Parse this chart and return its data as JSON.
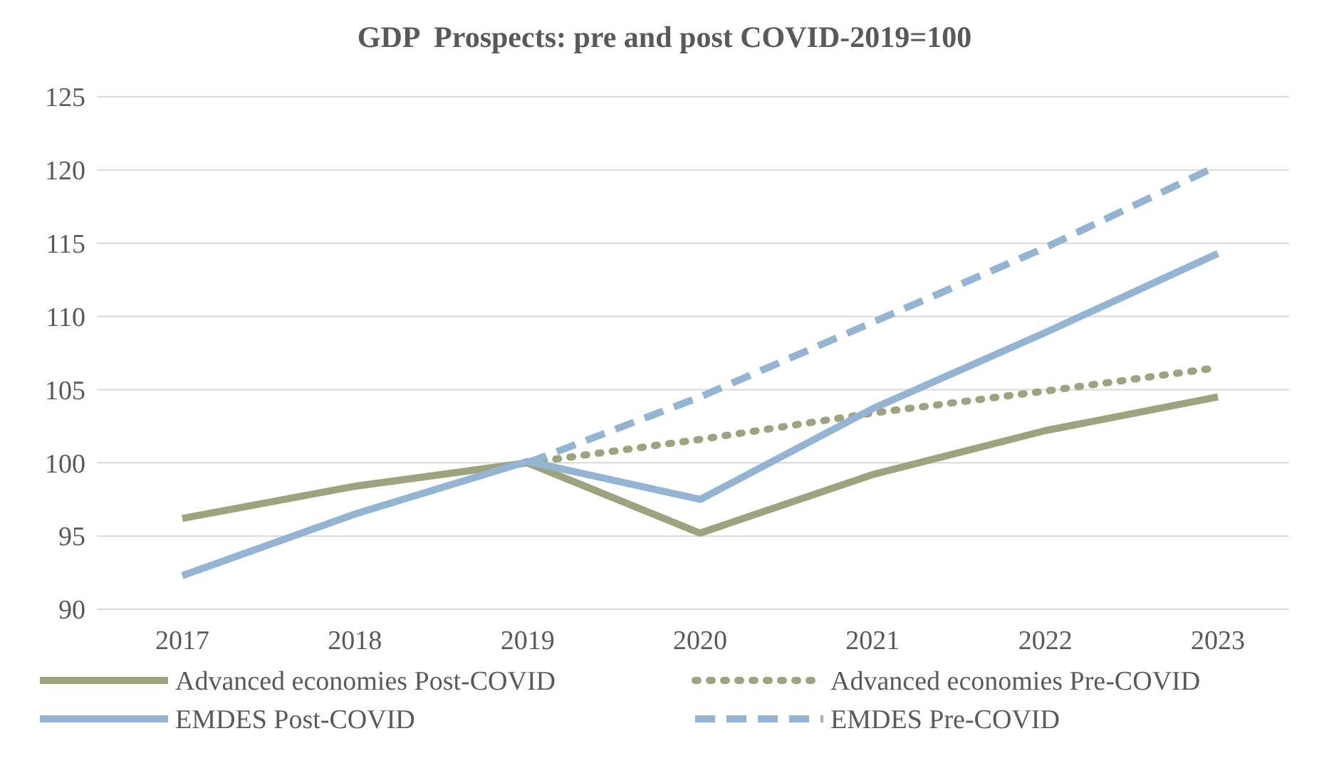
{
  "chart_data": {
    "type": "line",
    "title": "GDP  Prospects: pre and post COVID-2019=100",
    "categories": [
      "2017",
      "2018",
      "2019",
      "2020",
      "2021",
      "2022",
      "2023"
    ],
    "ylim": [
      90,
      125
    ],
    "yticks": [
      90,
      95,
      100,
      105,
      110,
      115,
      120,
      125
    ],
    "grid": "y",
    "legend": "bottom",
    "marker": "none",
    "series": [
      {
        "name": "Advanced economies Post-COVID",
        "color": "#9ba47c",
        "line_style": "solid",
        "values": [
          96.2,
          98.4,
          100,
          95.2,
          99.2,
          102.2,
          104.5
        ]
      },
      {
        "name": "Advanced economies Pre-COVID",
        "color": "#9ba47c",
        "line_style": "dotted",
        "values": [
          null,
          null,
          100,
          101.6,
          103.4,
          104.9,
          106.5
        ]
      },
      {
        "name": "EMDES Post-COVID",
        "color": "#94b4d4",
        "line_style": "solid",
        "values": [
          92.3,
          96.5,
          100.1,
          97.5,
          103.7,
          108.9,
          114.3
        ]
      },
      {
        "name": "EMDES Pre-COVID",
        "color": "#94b4d4",
        "line_style": "dashed",
        "values": [
          null,
          null,
          100,
          104.5,
          109.6,
          114.7,
          120.3
        ]
      }
    ]
  }
}
